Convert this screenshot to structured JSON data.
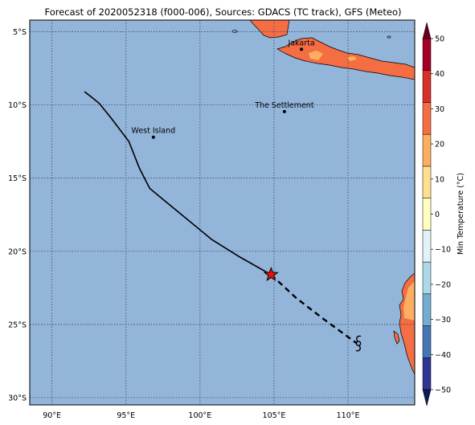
{
  "title": "Forecast of 2020052318 (f000-006), Sources: GDACS (TC track), GFS (Meteo)",
  "colors": {
    "ocean": "#92b5d9",
    "land_warm": "#f46d43",
    "land_hot": "#fdae61",
    "border": "#000000",
    "track": "#000000",
    "star_fill": "#e8120c"
  },
  "map": {
    "lon_range": [
      88.5,
      114.5
    ],
    "lat_range": [
      -30.5,
      -4.2
    ],
    "lon_ticks": [
      90,
      95,
      100,
      105,
      110
    ],
    "lon_tick_labels": [
      "90°E",
      "95°E",
      "100°E",
      "105°E",
      "110°E"
    ],
    "lat_ticks": [
      -5,
      -10,
      -15,
      -20,
      -25,
      -30
    ],
    "lat_tick_labels": [
      "5°S",
      "10°S",
      "15°S",
      "20°S",
      "25°S",
      "30°S"
    ],
    "gridlines": true
  },
  "places": [
    {
      "name": "Jakarta",
      "lon": 106.85,
      "lat": -6.2
    },
    {
      "name": "The Settlement",
      "lon": 105.7,
      "lat": -10.45
    },
    {
      "name": "West Island",
      "lon": 96.85,
      "lat": -12.2
    }
  ],
  "track": {
    "past": [
      [
        92.2,
        -9.1
      ],
      [
        92.6,
        -9.4
      ],
      [
        93.2,
        -9.9
      ],
      [
        94.0,
        -10.9
      ],
      [
        95.2,
        -12.5
      ],
      [
        95.9,
        -14.3
      ],
      [
        96.6,
        -15.7
      ],
      [
        97.8,
        -16.7
      ],
      [
        99.0,
        -17.7
      ],
      [
        100.8,
        -19.2
      ],
      [
        102.7,
        -20.4
      ],
      [
        104.8,
        -21.6
      ]
    ],
    "forecast": [
      [
        104.8,
        -21.6
      ],
      [
        106.5,
        -23.2
      ],
      [
        108.3,
        -24.6
      ],
      [
        110.6,
        -26.3
      ]
    ],
    "current_position": {
      "lon": 104.8,
      "lat": -21.6
    },
    "forecast_symbol": {
      "name": "cyclone-icon",
      "lon": 110.7,
      "lat": -26.3
    }
  },
  "colorbar": {
    "label": "Min Temperature (°C)",
    "ticks": [
      50,
      40,
      30,
      20,
      10,
      0,
      -10,
      -20,
      -30,
      -40,
      -50
    ],
    "tick_labels": [
      "50",
      "40",
      "30",
      "20",
      "10",
      "0",
      "−10",
      "−20",
      "−30",
      "−40",
      "−50"
    ],
    "range": [
      -50,
      50
    ],
    "colors": [
      "#313695",
      "#4575b4",
      "#74add1",
      "#abd9e9",
      "#e0f3f8",
      "#ffffbf",
      "#fee090",
      "#fdae61",
      "#f46d43",
      "#d73027",
      "#a50026"
    ]
  }
}
